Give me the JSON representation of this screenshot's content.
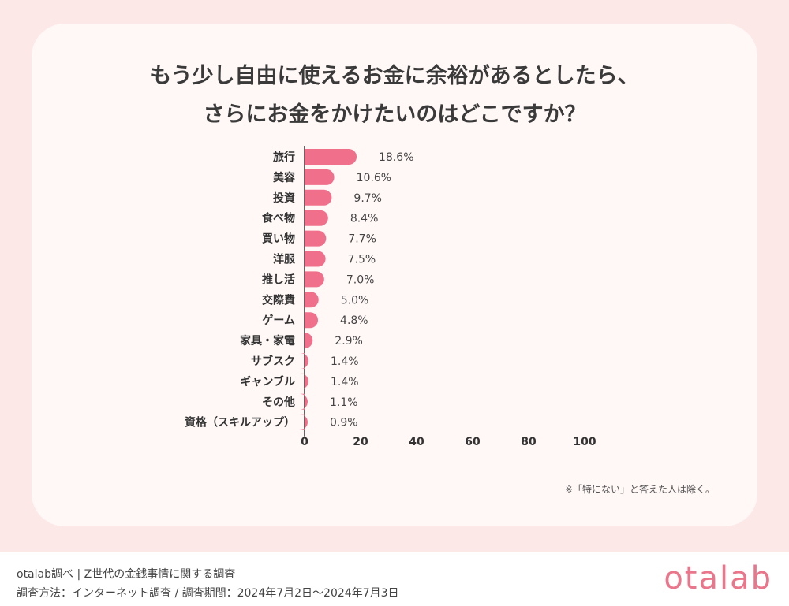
{
  "title_line1": "もう少し自由に使えるお金に余裕があるとしたら、",
  "title_line2": "さらにお金をかけたいのはどこですか？",
  "note": "※「特にない」と答えた人は除く。",
  "footer": {
    "source_line1": "otalab調べ | Z世代の金銭事情に関する調査",
    "source_line2": "調査方法：インターネット調査 / 調査期間：2024年7月2日〜2024年7月3日",
    "logo": "otalab"
  },
  "colors": {
    "bar": "#f0708c",
    "background": "#fde8e8",
    "card": "#fff8f7",
    "logo": "#e9768a"
  },
  "chart_data": {
    "type": "bar",
    "orientation": "horizontal",
    "categories": [
      "旅行",
      "美容",
      "投資",
      "食べ物",
      "買い物",
      "洋服",
      "推し活",
      "交際費",
      "ゲーム",
      "家具・家電",
      "サブスク",
      "ギャンブル",
      "その他",
      "資格（スキルアップ）"
    ],
    "values": [
      18.6,
      10.6,
      9.7,
      8.4,
      7.7,
      7.5,
      7.0,
      5.0,
      4.8,
      2.9,
      1.4,
      1.4,
      1.1,
      0.9
    ],
    "value_labels": [
      "18.6%",
      "10.6%",
      "9.7%",
      "8.4%",
      "7.7%",
      "7.5%",
      "7.0%",
      "5.0%",
      "4.8%",
      "2.9%",
      "1.4%",
      "1.4%",
      "1.1%",
      "0.9%"
    ],
    "xlim": [
      0,
      100
    ],
    "xticks": [
      "0",
      "20",
      "40",
      "60",
      "80",
      "100"
    ],
    "grid": false,
    "legend": "none"
  }
}
